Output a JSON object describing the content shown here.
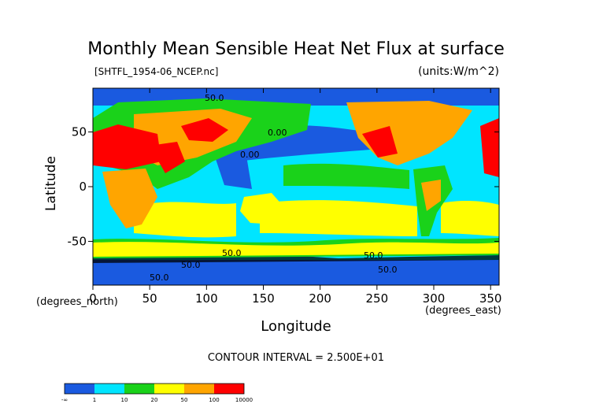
{
  "chart_data": {
    "type": "heatmap",
    "title": "Monthly Mean Sensible Heat Net Flux at surface",
    "file_label": "[SHTFL_1954-06_NCEP.nc]",
    "units_label": "(units:W/m^2)",
    "xlabel": "Longitude",
    "ylabel": "Latitude",
    "x_unit_label": "(degrees_east)",
    "y_unit_label": "(degrees_north)",
    "xlim": [
      0,
      357.5
    ],
    "ylim": [
      -90,
      90
    ],
    "x_ticks": [
      0,
      50,
      100,
      150,
      200,
      250,
      300,
      350
    ],
    "y_ticks": [
      50,
      0,
      -50
    ],
    "contour_interval_text": "CONTOUR INTERVAL = 2.500E+01",
    "contour_labels": [
      "0.00",
      "0.00",
      "50.0",
      "50.0",
      "50.0",
      "50.0",
      "50.0",
      "50.0"
    ],
    "colorbar": {
      "colors": [
        "#1a5ae0",
        "#00e5ff",
        "#1ad21a",
        "#ffff00",
        "#ffa500",
        "#ff0000"
      ],
      "tick_labels": [
        "-∞",
        "1",
        "10",
        "20",
        "50",
        "100",
        "10000"
      ]
    }
  }
}
